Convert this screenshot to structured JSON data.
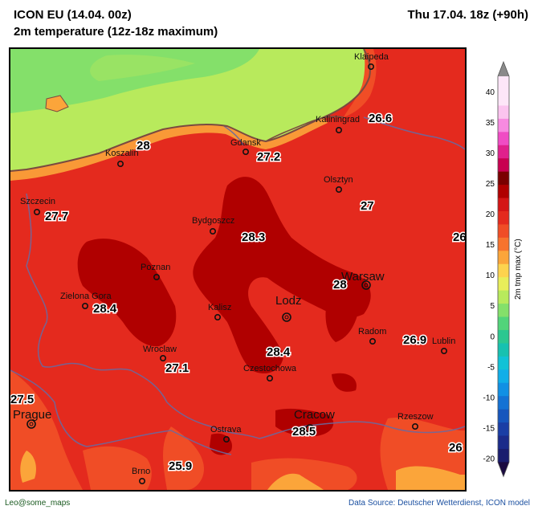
{
  "header": {
    "model_run": "ICON EU (14.04. 00z)",
    "parameter": "2m temperature (12z-18z maximum)",
    "valid_time": "Thu 17.04. 18z (+90h)"
  },
  "map": {
    "cities": [
      {
        "name": "Klaipeda",
        "size": "small"
      },
      {
        "name": "Kaliningrad",
        "size": "small"
      },
      {
        "name": "Gdansk",
        "size": "small"
      },
      {
        "name": "Koszalin",
        "size": "small"
      },
      {
        "name": "Olsztyn",
        "size": "small"
      },
      {
        "name": "Szczecin",
        "size": "small"
      },
      {
        "name": "Bydgoszcz",
        "size": "small"
      },
      {
        "name": "Poznan",
        "size": "small"
      },
      {
        "name": "Warsaw",
        "size": "big"
      },
      {
        "name": "Zielona Gora",
        "size": "small"
      },
      {
        "name": "Kalisz",
        "size": "small"
      },
      {
        "name": "Lodz",
        "size": "big"
      },
      {
        "name": "Radom",
        "size": "small"
      },
      {
        "name": "Lublin",
        "size": "small"
      },
      {
        "name": "Wroclaw",
        "size": "small"
      },
      {
        "name": "Czestochowa",
        "size": "small"
      },
      {
        "name": "Prague",
        "size": "big"
      },
      {
        "name": "Cracow",
        "size": "big"
      },
      {
        "name": "Rzeszow",
        "size": "small"
      },
      {
        "name": "Ostrava",
        "size": "small"
      },
      {
        "name": "Brno",
        "size": "small"
      }
    ],
    "temperature_labels": [
      "26.6",
      "28",
      "27.2",
      "27.7",
      "27",
      "28.3",
      "26",
      "28",
      "28.4",
      "26.9",
      "28.4",
      "27.1",
      "27.5",
      "28.5",
      "26",
      "25.9"
    ]
  },
  "colorbar": {
    "label": "2m tmp max (°C)",
    "ticks": [
      "40",
      "35",
      "30",
      "25",
      "20",
      "15",
      "10",
      "5",
      "0",
      "-5",
      "-10",
      "-15",
      "-20"
    ],
    "colors": [
      "#7a0000",
      "#b00000",
      "#d41515",
      "#e42a1e",
      "#f04d26",
      "#f7732d",
      "#fba53a",
      "#fdd34e",
      "#e8ee5a",
      "#b8ea5c",
      "#84e06a",
      "#52d47a",
      "#2cc790",
      "#17c1b0",
      "#10c2d6",
      "#10aee8",
      "#1190e4",
      "#1472d4",
      "#1656bd",
      "#1a3ea5",
      "#1b2b8a",
      "#1a1d6e"
    ],
    "top_colors": [
      "#c80050",
      "#e0208c",
      "#f04cc4",
      "#f78ae0",
      "#fbc4ef",
      "#fde6f8"
    ]
  },
  "footer": {
    "credit": "Leo@some_maps",
    "source": "Data Source: Deutscher Wetterdienst, ICON model"
  }
}
